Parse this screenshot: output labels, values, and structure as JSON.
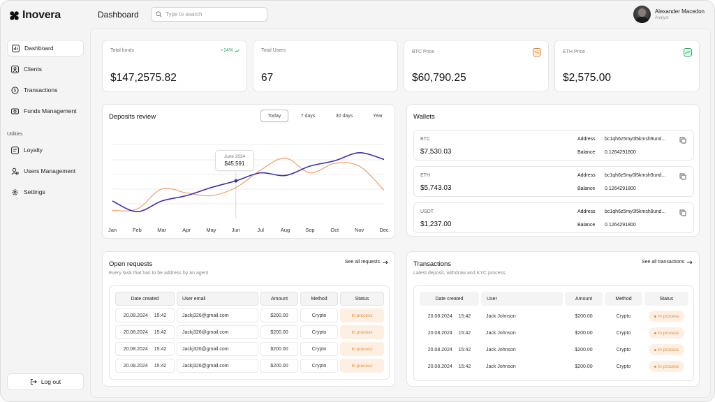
{
  "app": {
    "name": "Inovera"
  },
  "header": {
    "title": "Dashboard",
    "search_placeholder": "Type to search"
  },
  "user": {
    "name": "Alexander Macedon",
    "role": "Analyst"
  },
  "sidebar": {
    "items": [
      {
        "label": "Dashboard",
        "icon": "dashboard-icon",
        "active": true
      },
      {
        "label": "Clients",
        "icon": "clients-icon",
        "active": false
      },
      {
        "label": "Transactions",
        "icon": "transactions-icon",
        "active": false
      },
      {
        "label": "Funds Management",
        "icon": "funds-icon",
        "active": false
      }
    ],
    "section_label": "Utilities",
    "utilities": [
      {
        "label": "Loyalty",
        "icon": "loyalty-icon"
      },
      {
        "label": "Users Management",
        "icon": "users-icon"
      },
      {
        "label": "Settings",
        "icon": "gear-icon"
      }
    ],
    "logout_label": "Log out"
  },
  "stats": [
    {
      "label": "Total funds",
      "value": "$147,2575.82",
      "badge": "+14%"
    },
    {
      "label": "Total Users",
      "value": "67"
    },
    {
      "label": "BTC Price",
      "value": "$60,790.25",
      "icon": "trend-down-icon",
      "icon_color": "#e38a3d"
    },
    {
      "label": "ETH Price",
      "value": "$2,575.00",
      "icon": "trend-up-icon",
      "icon_color": "#2faa6a"
    }
  ],
  "deposits": {
    "title": "Deposits review",
    "ranges": [
      "Today",
      "7 days",
      "30 days",
      "Year"
    ],
    "active_range": "Today",
    "tooltip": {
      "label": "June 2024",
      "value": "$45,591"
    }
  },
  "chart_data": {
    "type": "line",
    "categories": [
      "Jan",
      "Feb",
      "Mar",
      "Apr",
      "May",
      "Jun",
      "Jul",
      "Aug",
      "Sep",
      "Oct",
      "Nov",
      "Dec"
    ],
    "ylim": [
      0,
      100
    ],
    "grid": true,
    "colors": [
      "#3a2fb0",
      "#f0a06a"
    ],
    "series": [
      {
        "values": [
          12,
          4,
          12,
          16,
          22,
          27,
          33,
          31,
          38,
          42,
          48,
          43
        ]
      },
      {
        "values": [
          5,
          6,
          21,
          18,
          16,
          22,
          35,
          44,
          33,
          40,
          38,
          20
        ]
      }
    ]
  },
  "wallets": {
    "title": "Wallets",
    "address_label": "Address",
    "balance_label": "Balance",
    "items": [
      {
        "code": "BTC",
        "amount": "$7,530.03",
        "address": "bc1qh6z5my0l5kmsh9und...",
        "balance": "0.1264291800"
      },
      {
        "code": "ETH",
        "amount": "$5,743.03",
        "address": "bc1qh6z5my0l5kmsh9und...",
        "balance": "0.1264291800"
      },
      {
        "code": "USDT",
        "amount": "$1,237.00",
        "address": "bc1qh6z5my0l5kmsh9und...",
        "balance": "0.1264291800"
      }
    ]
  },
  "open_requests": {
    "title": "Open requests",
    "subtitle": "Every task that has to be address by an agent",
    "see_all": "See all requests",
    "columns": [
      "Date created",
      "User email",
      "Amount",
      "Method",
      "Status"
    ],
    "rows": [
      {
        "date": "20.08.2024",
        "time": "15:42",
        "email": "Jackj326@gmail.com",
        "amount": "$200.00",
        "method": "Crypto",
        "status": "In process"
      },
      {
        "date": "20.08.2024",
        "time": "15:42",
        "email": "Jackj326@gmail.com",
        "amount": "$200.00",
        "method": "Crypto",
        "status": "In process"
      },
      {
        "date": "20.08.2024",
        "time": "15:42",
        "email": "Jackj326@gmail.com",
        "amount": "$200.00",
        "method": "Crypto",
        "status": "In process"
      },
      {
        "date": "20.08.2024",
        "time": "15:42",
        "email": "Jackj326@gmail.com",
        "amount": "$200.00",
        "method": "Crypto",
        "status": "In process"
      }
    ]
  },
  "transactions": {
    "title": "Transactions",
    "subtitle": "Latest deposit, withdraw and KYC process",
    "see_all": "See all transactions",
    "columns": [
      "Date created",
      "User",
      "Amount",
      "Method",
      "Status"
    ],
    "rows": [
      {
        "date": "20.08.2024",
        "time": "15:42",
        "user": "Jack Johnson",
        "amount": "$200.00",
        "method": "Crypto",
        "status": "In process"
      },
      {
        "date": "20.08.2024",
        "time": "15:42",
        "user": "Jack Johnson",
        "amount": "$200.00",
        "method": "Crypto",
        "status": "In process"
      },
      {
        "date": "20.08.2024",
        "time": "15:42",
        "user": "Jack Johnson",
        "amount": "$200.00",
        "method": "Crypto",
        "status": "In process"
      },
      {
        "date": "20.08.2024",
        "time": "15:42",
        "user": "Jack Johnson",
        "amount": "$200.00",
        "method": "Crypto",
        "status": "In process"
      }
    ]
  }
}
